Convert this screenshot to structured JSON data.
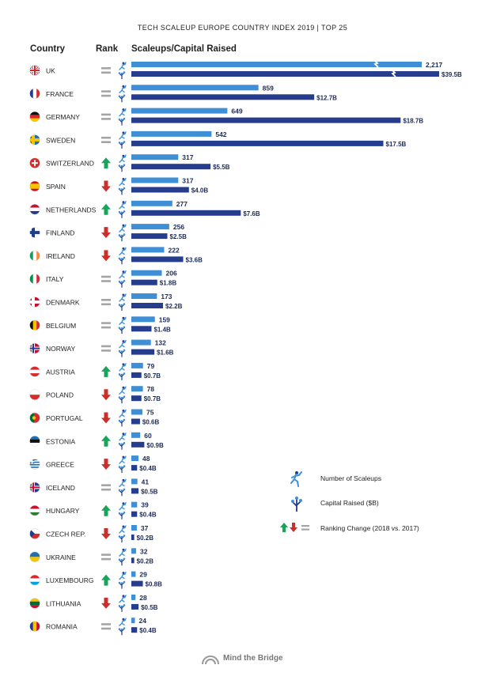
{
  "title": "TECH SCALEUP EUROPE COUNTRY INDEX 2019 | TOP 25",
  "headers": {
    "country": "Country",
    "rank": "Rank",
    "metric": "Scaleups/Capital Raised"
  },
  "legend": {
    "scaleups": "Number of Scaleups",
    "capital": "Capital Raised ($B)",
    "ranking": "Ranking Change (2018 vs. 2017)"
  },
  "footer": "Mind the Bridge",
  "colors": {
    "scaleups": "#3f8fd6",
    "capital": "#263c8c",
    "up": "#1aa35a",
    "down": "#c9302c",
    "same": "#a5a5a5",
    "label": "#1d2a56"
  },
  "chart_data": {
    "type": "bar",
    "categories": [
      "UK",
      "FRANCE",
      "GERMANY",
      "SWEDEN",
      "SWITZERLAND",
      "SPAIN",
      "NETHERLANDS",
      "FINLAND",
      "IRELAND",
      "ITALY",
      "DENMARK",
      "BELGIUM",
      "NORWAY",
      "AUSTRIA",
      "POLAND",
      "PORTUGAL",
      "ESTONIA",
      "GREECE",
      "ICELAND",
      "HUNGARY",
      "CZECH REP.",
      "UKRAINE",
      "LUXEMBOURG",
      "LITHUANIA",
      "ROMANIA"
    ],
    "rank_change": [
      "same",
      "same",
      "same",
      "same",
      "up",
      "down",
      "up",
      "down",
      "down",
      "same",
      "same",
      "same",
      "same",
      "up",
      "down",
      "down",
      "up",
      "down",
      "same",
      "up",
      "down",
      "same",
      "up",
      "down",
      "same"
    ],
    "flags": [
      "uk",
      "fr",
      "de",
      "se",
      "ch",
      "es",
      "nl",
      "fi",
      "ie",
      "it",
      "dk",
      "be",
      "no",
      "at",
      "pl",
      "pt",
      "ee",
      "gr",
      "is",
      "hu",
      "cz",
      "ua",
      "lu",
      "lt",
      "ro"
    ],
    "series": [
      {
        "name": "Number of Scaleups",
        "values": [
          2217,
          859,
          649,
          542,
          317,
          317,
          277,
          256,
          222,
          206,
          173,
          159,
          132,
          79,
          78,
          75,
          60,
          48,
          41,
          39,
          37,
          32,
          29,
          28,
          24
        ],
        "labels": [
          "2,217",
          "859",
          "649",
          "542",
          "317",
          "317",
          "277",
          "256",
          "222",
          "206",
          "173",
          "159",
          "132",
          "79",
          "78",
          "75",
          "60",
          "48",
          "41",
          "39",
          "37",
          "32",
          "29",
          "28",
          "24"
        ]
      },
      {
        "name": "Capital Raised ($B)",
        "values": [
          39.5,
          12.7,
          18.7,
          17.5,
          5.5,
          4.0,
          7.6,
          2.5,
          3.6,
          1.8,
          2.2,
          1.4,
          1.6,
          0.7,
          0.7,
          0.6,
          0.9,
          0.4,
          0.5,
          0.4,
          0.2,
          0.2,
          0.8,
          0.5,
          0.4
        ],
        "labels": [
          "$39.5B",
          "$12.7B",
          "$18.7B",
          "$17.5B",
          "$5.5B",
          "$4.0B",
          "$7.6B",
          "$2.5B",
          "$3.6B",
          "$1.8B",
          "$2.2B",
          "$1.4B",
          "$1.6B",
          "$0.7B",
          "$0.7B",
          "$0.6B",
          "$0.9B",
          "$0.4B",
          "$0.5B",
          "$0.4B",
          "$0.2B",
          "$0.2B",
          "$0.8B",
          "$0.5B",
          "$0.4B"
        ]
      }
    ],
    "truncated_bars": [
      "UK"
    ]
  }
}
